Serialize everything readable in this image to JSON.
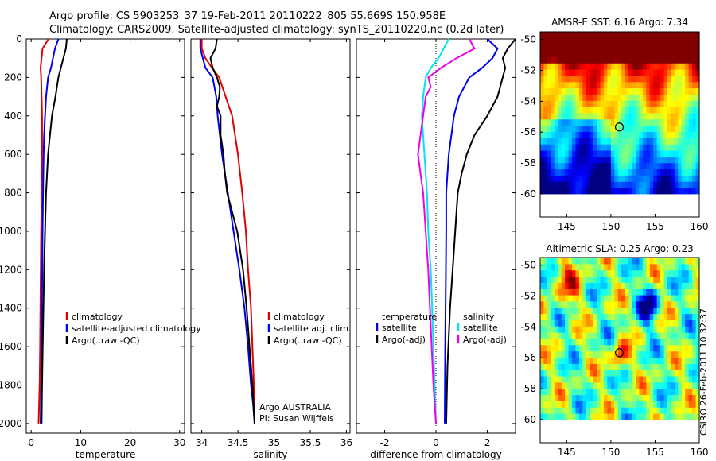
{
  "header": {
    "line1": "Argo profile: CS 5903253_37 19-Feb-2011 20110222_805 55.669S 150.958E",
    "line2": "Climatology: CARS2009. Satellite-adjusted climatology: synTS_20110220.nc (0.2d later)"
  },
  "credit": "CSIRO 26-Feb-2011 10:32:37",
  "colors": {
    "climatology": "#e00000",
    "satellite": "#0000ee",
    "argo": "#000000",
    "cyan": "#00e5ee",
    "magenta": "#ee00ee"
  },
  "chart_data": [
    {
      "type": "line",
      "id": "temperature",
      "xlabel": "temperature",
      "ylabel": "",
      "xlim": [
        -1,
        31
      ],
      "ylim": [
        0,
        2050
      ],
      "y_reversed": true,
      "xticks": [
        0,
        10,
        20,
        30
      ],
      "yticks": [
        0,
        200,
        400,
        600,
        800,
        1000,
        1200,
        1400,
        1600,
        1800,
        2000
      ],
      "legend_location": "lower-right",
      "legend": [
        "climatology",
        "satellite-adjusted climatology",
        "Argo(..raw -QC)"
      ],
      "series": [
        {
          "name": "climatology",
          "color": "climatology",
          "x": [
            3.5,
            2.3,
            1.9,
            2.0,
            2.1,
            2.2,
            2.2,
            2.1,
            2.0,
            1.9,
            1.8,
            1.7,
            1.5
          ],
          "y": [
            0,
            50,
            150,
            200,
            300,
            400,
            600,
            800,
            1000,
            1300,
            1600,
            1800,
            2000
          ]
        },
        {
          "name": "satellite-adjusted climatology",
          "color": "satellite",
          "x": [
            5.5,
            4.8,
            4.0,
            3.4,
            3.0,
            2.8,
            2.6,
            2.5,
            2.4,
            2.3,
            2.2,
            2.1,
            2.0,
            1.9
          ],
          "y": [
            0,
            50,
            150,
            200,
            300,
            400,
            500,
            600,
            800,
            1000,
            1300,
            1600,
            1800,
            2000
          ]
        },
        {
          "name": "Argo(..raw -QC)",
          "color": "argo",
          "x": [
            7.2,
            7.0,
            6.4,
            6.0,
            5.5,
            4.9,
            4.2,
            3.8,
            3.4,
            3.0,
            2.8,
            2.6,
            2.4,
            2.2,
            2.1
          ],
          "y": [
            0,
            50,
            110,
            150,
            200,
            300,
            400,
            500,
            600,
            800,
            1000,
            1200,
            1500,
            1800,
            2000
          ]
        }
      ]
    },
    {
      "type": "line",
      "id": "salinity",
      "xlabel": "salinity",
      "xlim": [
        33.85,
        36.05
      ],
      "ylim": [
        0,
        2050
      ],
      "y_reversed": true,
      "xticks": [
        34,
        34.5,
        35,
        35.5,
        36
      ],
      "legend_location": "lower-right",
      "legend": [
        "climatology",
        "satellite adj. clim.",
        "Argo(..raw -QC)"
      ],
      "annotations": [
        "Argo AUSTRALIA",
        "PI: Susan Wijffels"
      ],
      "series": [
        {
          "name": "climatology",
          "color": "climatology",
          "x": [
            34.0,
            34.0,
            34.05,
            34.14,
            34.24,
            34.33,
            34.42,
            34.5,
            34.56,
            34.61,
            34.64,
            34.68,
            34.7,
            34.72,
            34.73
          ],
          "y": [
            0,
            50,
            100,
            150,
            200,
            300,
            400,
            600,
            800,
            1000,
            1200,
            1400,
            1600,
            1800,
            2000
          ]
        },
        {
          "name": "satellite adj. clim.",
          "color": "satellite",
          "x": [
            33.98,
            33.98,
            34.05,
            34.15,
            34.2,
            34.22,
            34.28,
            34.36,
            34.44,
            34.52,
            34.59,
            34.64,
            34.68,
            34.71,
            34.73
          ],
          "y": [
            0,
            50,
            150,
            200,
            300,
            400,
            600,
            800,
            1000,
            1200,
            1400,
            1600,
            1800,
            1900,
            2000
          ]
        },
        {
          "name": "Argo(..raw -QC)",
          "color": "argo",
          "x": [
            34.21,
            34.19,
            34.12,
            34.15,
            34.21,
            34.25,
            34.24,
            34.21,
            34.26,
            34.26,
            34.3,
            34.32,
            34.35,
            34.42,
            34.49,
            34.57,
            34.62,
            34.66,
            34.7,
            34.73
          ],
          "y": [
            0,
            50,
            100,
            150,
            200,
            250,
            300,
            350,
            400,
            500,
            600,
            700,
            800,
            900,
            1000,
            1200,
            1400,
            1600,
            1800,
            2000
          ]
        }
      ]
    },
    {
      "type": "line",
      "id": "difference",
      "xlabel": "difference from climatology",
      "xlim": [
        -3.1,
        3.1
      ],
      "ylim": [
        0,
        2050
      ],
      "y_reversed": true,
      "xticks": [
        -2,
        0,
        2
      ],
      "zero_line": true,
      "legend_location": "lower",
      "legend_groups": [
        {
          "title": "temperature",
          "entries": [
            "satellite",
            "Argo(-adj)"
          ]
        },
        {
          "title": "salinity",
          "entries": [
            "satellite",
            "Argo(-adj)"
          ]
        }
      ],
      "series": [
        {
          "name": "temperature satellite",
          "color": "satellite",
          "x": [
            2.0,
            2.4,
            2.2,
            1.8,
            1.3,
            0.9,
            0.7,
            0.6,
            0.5,
            0.45,
            0.4,
            0.4,
            0.38,
            0.36,
            0.35,
            0.34
          ],
          "y": [
            0,
            50,
            100,
            150,
            200,
            300,
            400,
            500,
            600,
            700,
            800,
            1000,
            1300,
            1600,
            1800,
            2000
          ]
        },
        {
          "name": "temperature Argo(-adj)",
          "color": "argo",
          "x": [
            3.1,
            2.8,
            2.6,
            2.7,
            2.6,
            2.4,
            2.0,
            1.5,
            1.2,
            1.0,
            0.85,
            0.8,
            0.75,
            0.65,
            0.55,
            0.45,
            0.4
          ],
          "y": [
            0,
            50,
            100,
            150,
            200,
            300,
            400,
            500,
            600,
            700,
            800,
            900,
            1000,
            1200,
            1400,
            1700,
            2000
          ]
        },
        {
          "name": "salinity satellite",
          "color": "cyan",
          "x": [
            0.5,
            0.3,
            0.1,
            -0.2,
            -0.4,
            -0.5,
            -0.55,
            -0.45,
            -0.35,
            -0.3,
            -0.2,
            -0.15,
            -0.1,
            -0.05,
            0.0
          ],
          "y": [
            0,
            50,
            100,
            150,
            200,
            300,
            400,
            600,
            800,
            1000,
            1200,
            1400,
            1600,
            1800,
            2000
          ]
        },
        {
          "name": "salinity Argo(-adj)",
          "color": "magenta",
          "x": [
            1.3,
            1.5,
            0.8,
            0.2,
            -0.3,
            -0.2,
            -0.4,
            -0.5,
            -0.6,
            -0.7,
            -0.6,
            -0.5,
            -0.4,
            -0.3,
            -0.2,
            -0.1,
            0.0
          ],
          "y": [
            0,
            50,
            100,
            150,
            200,
            250,
            300,
            400,
            500,
            600,
            700,
            800,
            1000,
            1200,
            1500,
            1800,
            2000
          ]
        }
      ]
    },
    {
      "type": "heatmap",
      "id": "sst_map",
      "title": "AMSR-E SST: 6.16 Argo: 7.34",
      "xlim": [
        142,
        160
      ],
      "ylim": [
        -61.5,
        -49.5
      ],
      "data_extent": {
        "lon": [
          142,
          160
        ],
        "lat": [
          -60,
          -49.5
        ]
      },
      "xticks": [
        145,
        150,
        155,
        160
      ],
      "yticks": [
        -50,
        -52,
        -54,
        -56,
        -58,
        -60
      ],
      "marker": {
        "lon": 150.958,
        "lat": -55.669
      }
    },
    {
      "type": "heatmap",
      "id": "sla_map",
      "title": "Altimetric SLA: 0.25 Argo: 0.23",
      "xlim": [
        142,
        160
      ],
      "ylim": [
        -61.5,
        -49.5
      ],
      "data_extent": {
        "lon": [
          142,
          160
        ],
        "lat": [
          -60,
          -49.5
        ]
      },
      "xticks": [
        145,
        150,
        155,
        160
      ],
      "yticks": [
        -50,
        -52,
        -54,
        -56,
        -58,
        -60
      ],
      "marker": {
        "lon": 150.958,
        "lat": -55.669
      }
    }
  ]
}
